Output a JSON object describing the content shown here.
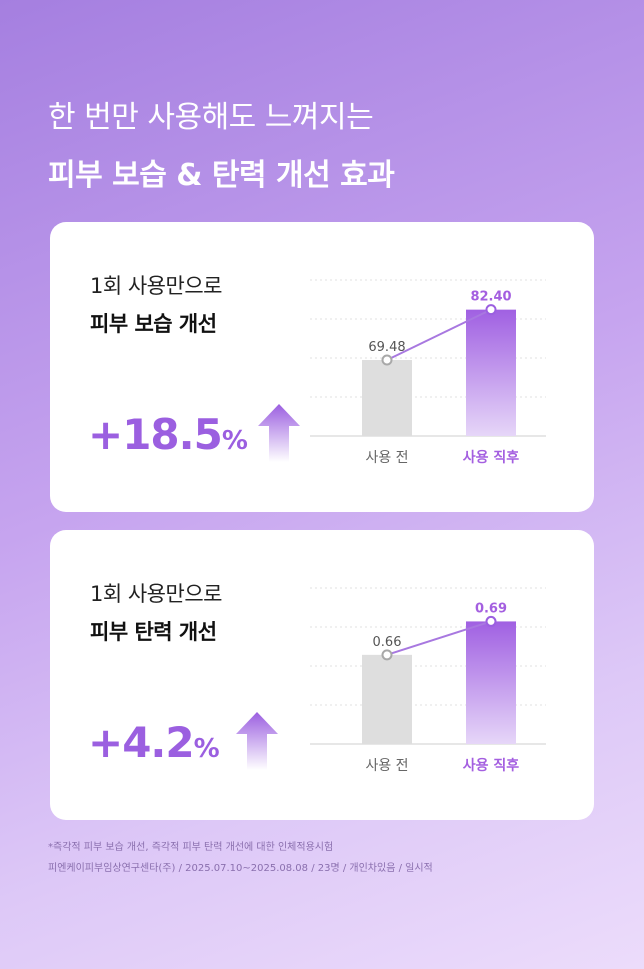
{
  "headline": {
    "line1": "한 번만 사용해도 느껴지는",
    "line2": "피부 보습 & 탄력 개선 효과"
  },
  "cards": [
    {
      "subtitle": "1회 사용만으로",
      "title": "피부 보습 개선",
      "increase_value": "+18.5",
      "increase_unit": "%"
    },
    {
      "subtitle": "1회 사용만으로",
      "title": "피부 탄력 개선",
      "increase_value": "+4.2",
      "increase_unit": "%"
    }
  ],
  "chart_data": [
    {
      "type": "bar",
      "categories": [
        "사용 전",
        "사용 직후"
      ],
      "values": [
        69.48,
        82.4
      ],
      "labels": [
        "69.48",
        "82.40"
      ],
      "ylim": [
        50,
        90
      ],
      "grid": true,
      "colors": {
        "before": "#dedede",
        "after": "#a86ee3",
        "after_label": "#a45fe0"
      }
    },
    {
      "type": "bar",
      "categories": [
        "사용 전",
        "사용 직후"
      ],
      "values": [
        0.66,
        0.69
      ],
      "labels": [
        "0.66",
        "0.69"
      ],
      "ylim": [
        0.58,
        0.72
      ],
      "grid": true,
      "colors": {
        "before": "#dedede",
        "after": "#a86ee3",
        "after_label": "#a45fe0"
      }
    }
  ],
  "footnote": {
    "line1": "*즉각적 피부 보습 개선, 즉각적 피부 탄력 개선에 대한 인체적용시험",
    "line2": "피엔케이피부임상연구센타(주) / 2025.07.10~2025.08.08 / 23명 / 개인차있음 / 일시적"
  }
}
